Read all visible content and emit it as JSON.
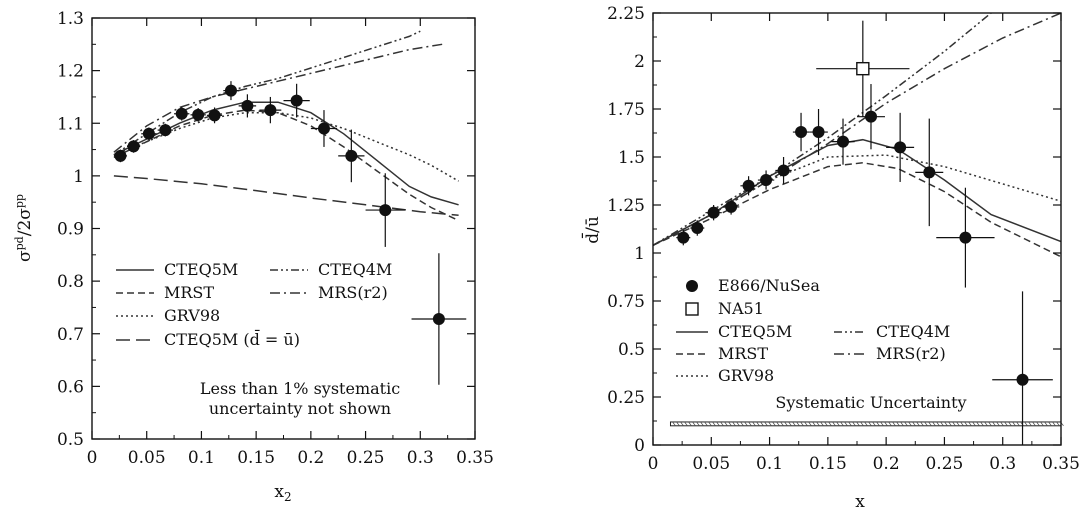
{
  "chart_data": [
    {
      "type": "scatter",
      "panel": "left",
      "xlabel": "x2",
      "ylabel": "σpd/2σpp",
      "xlim": [
        0,
        0.35
      ],
      "ylim": [
        0.5,
        1.3
      ],
      "x_ticks": [
        "0",
        "0.05",
        "0.1",
        "0.15",
        "0.2",
        "0.25",
        "0.3",
        "0.35"
      ],
      "y_ticks": [
        "0.5",
        "0.6",
        "0.7",
        "0.8",
        "0.9",
        "1",
        "1.1",
        "1.2",
        "1.3"
      ],
      "annotation": [
        "Less than 1% systematic",
        "uncertainty not shown"
      ],
      "points": [
        {
          "x": 0.026,
          "y": 1.038,
          "err": 0.012,
          "xerr": 0.006
        },
        {
          "x": 0.038,
          "y": 1.056,
          "err": 0.012,
          "xerr": 0.006
        },
        {
          "x": 0.052,
          "y": 1.08,
          "err": 0.012,
          "xerr": 0.007
        },
        {
          "x": 0.067,
          "y": 1.087,
          "err": 0.012,
          "xerr": 0.007
        },
        {
          "x": 0.082,
          "y": 1.118,
          "err": 0.013,
          "xerr": 0.007
        },
        {
          "x": 0.097,
          "y": 1.116,
          "err": 0.013,
          "xerr": 0.007
        },
        {
          "x": 0.112,
          "y": 1.115,
          "err": 0.015,
          "xerr": 0.007
        },
        {
          "x": 0.127,
          "y": 1.162,
          "err": 0.018,
          "xerr": 0.007
        },
        {
          "x": 0.142,
          "y": 1.133,
          "err": 0.022,
          "xerr": 0.008
        },
        {
          "x": 0.163,
          "y": 1.125,
          "err": 0.025,
          "xerr": 0.01
        },
        {
          "x": 0.187,
          "y": 1.143,
          "err": 0.032,
          "xerr": 0.012
        },
        {
          "x": 0.212,
          "y": 1.09,
          "err": 0.035,
          "xerr": 0.012
        },
        {
          "x": 0.237,
          "y": 1.038,
          "err": 0.05,
          "xerr": 0.012
        },
        {
          "x": 0.268,
          "y": 0.935,
          "err": 0.07,
          "xerr": 0.018
        },
        {
          "x": 0.317,
          "y": 0.728,
          "err": 0.125,
          "xerr": 0.025
        }
      ],
      "series": [
        {
          "name": "CTEQ5M",
          "style": "solid",
          "x": [
            0.02,
            0.05,
            0.08,
            0.11,
            0.14,
            0.17,
            0.2,
            0.23,
            0.26,
            0.29,
            0.31,
            0.335
          ],
          "y": [
            1.04,
            1.07,
            1.1,
            1.125,
            1.14,
            1.14,
            1.12,
            1.08,
            1.03,
            0.98,
            0.96,
            0.945
          ]
        },
        {
          "name": "MRST",
          "style": "dash",
          "x": [
            0.02,
            0.05,
            0.08,
            0.11,
            0.14,
            0.17,
            0.2,
            0.23,
            0.26,
            0.29,
            0.31,
            0.335
          ],
          "y": [
            1.035,
            1.065,
            1.095,
            1.115,
            1.125,
            1.12,
            1.095,
            1.055,
            1.01,
            0.965,
            0.94,
            0.915
          ]
        },
        {
          "name": "GRV98",
          "style": "dot",
          "x": [
            0.02,
            0.05,
            0.08,
            0.11,
            0.14,
            0.17,
            0.2,
            0.23,
            0.26,
            0.29,
            0.31,
            0.335
          ],
          "y": [
            1.04,
            1.065,
            1.09,
            1.11,
            1.12,
            1.12,
            1.11,
            1.09,
            1.065,
            1.04,
            1.02,
            0.99
          ]
        },
        {
          "name": "CTEQ5M (d̄ = ū)",
          "style": "longdash",
          "x": [
            0.02,
            0.05,
            0.1,
            0.15,
            0.2,
            0.25,
            0.3,
            0.335
          ],
          "y": [
            1.0,
            0.995,
            0.985,
            0.972,
            0.958,
            0.945,
            0.932,
            0.925
          ]
        },
        {
          "name": "CTEQ4M",
          "style": "dashdotdot",
          "x": [
            0.02,
            0.05,
            0.08,
            0.11,
            0.14,
            0.17,
            0.2,
            0.23,
            0.26,
            0.29,
            0.3
          ],
          "y": [
            1.04,
            1.08,
            1.12,
            1.15,
            1.17,
            1.185,
            1.205,
            1.225,
            1.245,
            1.265,
            1.275
          ]
        },
        {
          "name": "MRS(r2)",
          "style": "dashdot",
          "x": [
            0.02,
            0.05,
            0.08,
            0.11,
            0.14,
            0.17,
            0.2,
            0.23,
            0.26,
            0.29,
            0.32
          ],
          "y": [
            1.045,
            1.095,
            1.13,
            1.15,
            1.165,
            1.18,
            1.195,
            1.21,
            1.225,
            1.24,
            1.25
          ]
        }
      ]
    },
    {
      "type": "scatter",
      "panel": "right",
      "xlabel": "x",
      "ylabel": "d̄/ū",
      "xlim": [
        0,
        0.35
      ],
      "ylim": [
        0,
        2.25
      ],
      "x_ticks": [
        "0",
        "0.05",
        "0.1",
        "0.15",
        "0.2",
        "0.25",
        "0.3",
        "0.35"
      ],
      "y_ticks": [
        "0",
        "0.25",
        "0.5",
        "0.75",
        "1",
        "1.25",
        "1.5",
        "1.75",
        "2",
        "2.25"
      ],
      "annotation": [
        "Systematic Uncertainty"
      ],
      "systematic_band": {
        "x": [
          0.015,
          0.35
        ],
        "y": [
          0.1,
          0.12
        ]
      },
      "points": [
        {
          "series": "E866/NuSea",
          "x": 0.026,
          "y": 1.08,
          "err": 0.04,
          "xerr": 0.006
        },
        {
          "series": "E866/NuSea",
          "x": 0.038,
          "y": 1.13,
          "err": 0.04,
          "xerr": 0.006
        },
        {
          "series": "E866/NuSea",
          "x": 0.052,
          "y": 1.21,
          "err": 0.04,
          "xerr": 0.007
        },
        {
          "series": "E866/NuSea",
          "x": 0.067,
          "y": 1.24,
          "err": 0.04,
          "xerr": 0.007
        },
        {
          "series": "E866/NuSea",
          "x": 0.082,
          "y": 1.35,
          "err": 0.05,
          "xerr": 0.007
        },
        {
          "series": "E866/NuSea",
          "x": 0.097,
          "y": 1.38,
          "err": 0.05,
          "xerr": 0.007
        },
        {
          "series": "E866/NuSea",
          "x": 0.112,
          "y": 1.43,
          "err": 0.07,
          "xerr": 0.007
        },
        {
          "series": "E866/NuSea",
          "x": 0.127,
          "y": 1.63,
          "err": 0.1,
          "xerr": 0.007
        },
        {
          "series": "E866/NuSea",
          "x": 0.142,
          "y": 1.63,
          "err": 0.12,
          "xerr": 0.008
        },
        {
          "series": "E866/NuSea",
          "x": 0.163,
          "y": 1.58,
          "err": 0.12,
          "xerr": 0.01
        },
        {
          "series": "E866/NuSea",
          "x": 0.187,
          "y": 1.71,
          "err": 0.17,
          "xerr": 0.012
        },
        {
          "series": "E866/NuSea",
          "x": 0.212,
          "y": 1.55,
          "err": 0.18,
          "xerr": 0.012
        },
        {
          "series": "E866/NuSea",
          "x": 0.237,
          "y": 1.42,
          "err": 0.28,
          "xerr": 0.012
        },
        {
          "series": "E866/NuSea",
          "x": 0.268,
          "y": 1.08,
          "err": 0.26,
          "xerr": 0.025
        },
        {
          "series": "E866/NuSea",
          "x": 0.317,
          "y": 0.34,
          "err": 0.46,
          "xerr": 0.026
        },
        {
          "series": "NA51",
          "x": 0.18,
          "y": 1.96,
          "err": 0.25,
          "xerr": 0.04
        }
      ],
      "series": [
        {
          "name": "CTEQ5M",
          "style": "solid",
          "x": [
            0.0,
            0.05,
            0.1,
            0.15,
            0.18,
            0.21,
            0.25,
            0.29,
            0.35
          ],
          "y": [
            1.04,
            1.2,
            1.4,
            1.56,
            1.59,
            1.54,
            1.38,
            1.2,
            1.06
          ]
        },
        {
          "name": "MRST",
          "style": "dash",
          "x": [
            0.0,
            0.05,
            0.1,
            0.15,
            0.18,
            0.21,
            0.25,
            0.29,
            0.35
          ],
          "y": [
            1.04,
            1.18,
            1.33,
            1.45,
            1.47,
            1.44,
            1.32,
            1.16,
            0.98
          ]
        },
        {
          "name": "GRV98",
          "style": "dot",
          "x": [
            0.0,
            0.05,
            0.1,
            0.15,
            0.2,
            0.25,
            0.3,
            0.35
          ],
          "y": [
            1.04,
            1.2,
            1.38,
            1.5,
            1.51,
            1.45,
            1.36,
            1.27
          ]
        },
        {
          "name": "CTEQ4M",
          "style": "dashdotdot",
          "x": [
            0.0,
            0.05,
            0.1,
            0.15,
            0.2,
            0.25,
            0.3
          ],
          "y": [
            1.04,
            1.22,
            1.4,
            1.6,
            1.82,
            2.05,
            2.3
          ]
        },
        {
          "name": "MRS(r2)",
          "style": "dashdot",
          "x": [
            0.0,
            0.05,
            0.1,
            0.15,
            0.2,
            0.25,
            0.3,
            0.35
          ],
          "y": [
            1.04,
            1.2,
            1.38,
            1.57,
            1.78,
            1.96,
            2.12,
            2.25
          ]
        }
      ]
    }
  ],
  "legend_left": [
    {
      "label": "CTEQ5M",
      "style": "solid"
    },
    {
      "label": "MRST",
      "style": "dash"
    },
    {
      "label": "GRV98",
      "style": "dot"
    },
    {
      "label": "CTEQ5M (d̄ = ū)",
      "style": "longdash"
    },
    {
      "label": "CTEQ4M",
      "style": "dashdotdot"
    },
    {
      "label": "MRS(r2)",
      "style": "dashdot"
    }
  ],
  "legend_right": [
    {
      "label": "E866/NuSea",
      "style": "filled-circle"
    },
    {
      "label": "NA51",
      "style": "open-square"
    },
    {
      "label": "CTEQ5M",
      "style": "solid"
    },
    {
      "label": "MRST",
      "style": "dash"
    },
    {
      "label": "GRV98",
      "style": "dot"
    },
    {
      "label": "CTEQ4M",
      "style": "dashdotdot"
    },
    {
      "label": "MRS(r2)",
      "style": "dashdot"
    }
  ]
}
